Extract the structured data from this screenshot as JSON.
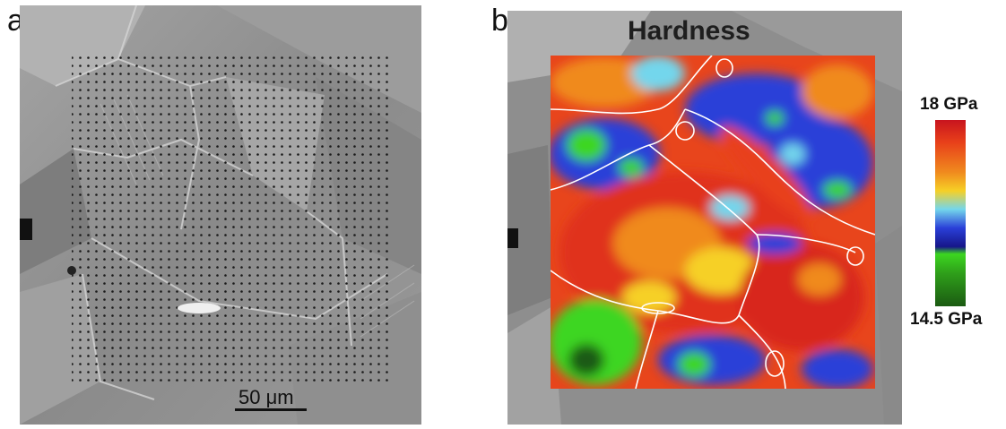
{
  "panels": {
    "a": {
      "label": "a",
      "scale_bar": "50 μm"
    },
    "b": {
      "label": "b",
      "title": "Hardness"
    }
  },
  "colorbar": {
    "max_label": "18 GPa",
    "min_label": "14.5 GPa",
    "max_value": 18,
    "min_value": 14.5,
    "unit": "GPa",
    "colors": [
      "#c8141e",
      "#f08a1e",
      "#f6d026",
      "#73d6ec",
      "#2a3fd8",
      "#16168a",
      "#3cd620",
      "#1b5a12"
    ]
  }
}
